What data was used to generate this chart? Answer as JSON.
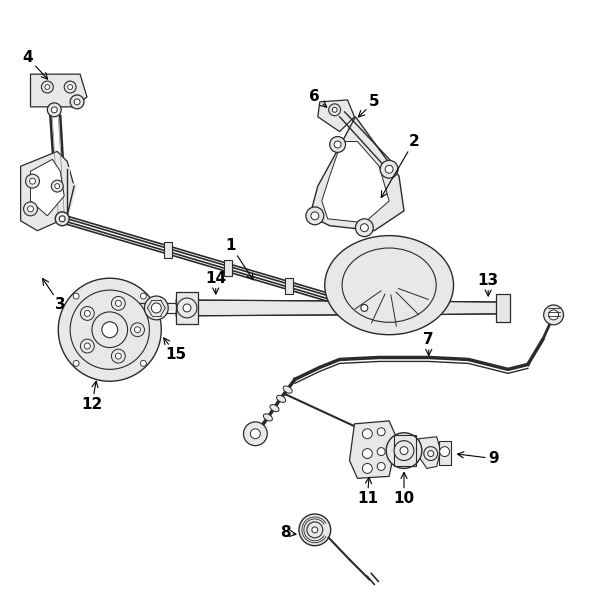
{
  "background_color": "#ffffff",
  "line_color": "#2a2a2a",
  "label_color": "#000000",
  "fig_width": 5.94,
  "fig_height": 6.04,
  "dpi": 100
}
